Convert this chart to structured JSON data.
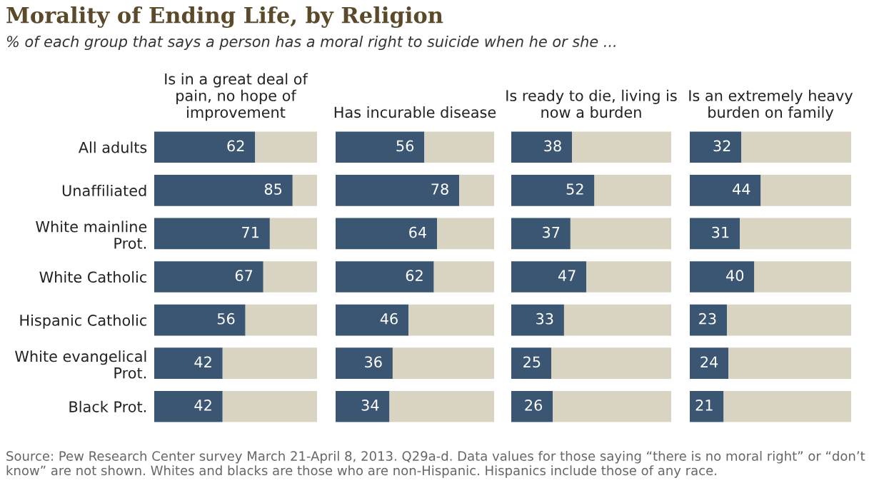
{
  "chart_data": [
    {
      "type": "bar",
      "orientation": "horizontal",
      "stacked": true,
      "title": "Is in a great deal of pain, no hope of improvement",
      "categories": [
        "All adults",
        "Unaffiliated",
        "White mainline Prot.",
        "White Catholic",
        "Hispanic Catholic",
        "White evangelical Prot.",
        "Black Prot."
      ],
      "xlim": [
        0,
        100
      ],
      "tick_labels": "y",
      "series": [
        {
          "color": "#3b5672",
          "values": [
            62,
            85,
            71,
            67,
            56,
            42,
            42
          ],
          "value_labels": [
            "62",
            "85",
            "71",
            "67",
            "56",
            "42",
            "42"
          ]
        },
        {
          "color": "#d9d3c1",
          "values": [
            38,
            15,
            29,
            33,
            44,
            58,
            58
          ]
        }
      ],
      "annotations": [
        "Morality of Ending Life, by Religion",
        "% of each group that says a person has a moral right to suicide when he or she ...",
        "Source: Pew Research Center survey March 21-April 8, 2013. Q29a-d. Data values for those saying “there is no moral right” or “don’t know” are not shown. Whites and blacks are those who are non-Hispanic. Hispanics include those of any race."
      ]
    },
    {
      "type": "bar",
      "orientation": "horizontal",
      "stacked": true,
      "title": "Has incurable disease",
      "categories": [
        null,
        null,
        null,
        null,
        null,
        null,
        null
      ],
      "xlim": [
        0,
        100
      ],
      "tick_labels": false,
      "series": [
        {
          "color": "#3b5672",
          "values": [
            56,
            78,
            64,
            62,
            46,
            36,
            34
          ],
          "value_labels": [
            "56",
            "78",
            "64",
            "62",
            "46",
            "36",
            "34"
          ]
        },
        {
          "color": "#d9d3c1",
          "values": [
            44,
            22,
            36,
            38,
            54,
            64,
            66
          ]
        }
      ]
    },
    {
      "type": "bar",
      "orientation": "horizontal",
      "stacked": true,
      "title": "Is ready to die, living is now a burden",
      "categories": [
        null,
        null,
        null,
        null,
        null,
        null,
        null
      ],
      "xlim": [
        0,
        100
      ],
      "tick_labels": false,
      "series": [
        {
          "color": "#3b5672",
          "values": [
            38,
            52,
            37,
            47,
            33,
            25,
            26
          ],
          "value_labels": [
            "38",
            "52",
            "37",
            "47",
            "33",
            "25",
            "26"
          ]
        },
        {
          "color": "#d9d3c1",
          "values": [
            62,
            48,
            63,
            53,
            67,
            75,
            74
          ]
        }
      ]
    },
    {
      "type": "bar",
      "orientation": "horizontal",
      "stacked": true,
      "title": "Is an extremely heavy burden on family",
      "categories": [
        null,
        null,
        null,
        null,
        null,
        null,
        null
      ],
      "xlim": [
        0,
        100
      ],
      "tick_labels": false,
      "series": [
        {
          "color": "#3b5672",
          "values": [
            32,
            44,
            31,
            40,
            23,
            24,
            21
          ],
          "value_labels": [
            "32",
            "44",
            "31",
            "40",
            "23",
            "24",
            "21"
          ]
        },
        {
          "color": "#d9d3c1",
          "values": [
            68,
            56,
            69,
            60,
            77,
            76,
            79
          ]
        }
      ]
    }
  ]
}
